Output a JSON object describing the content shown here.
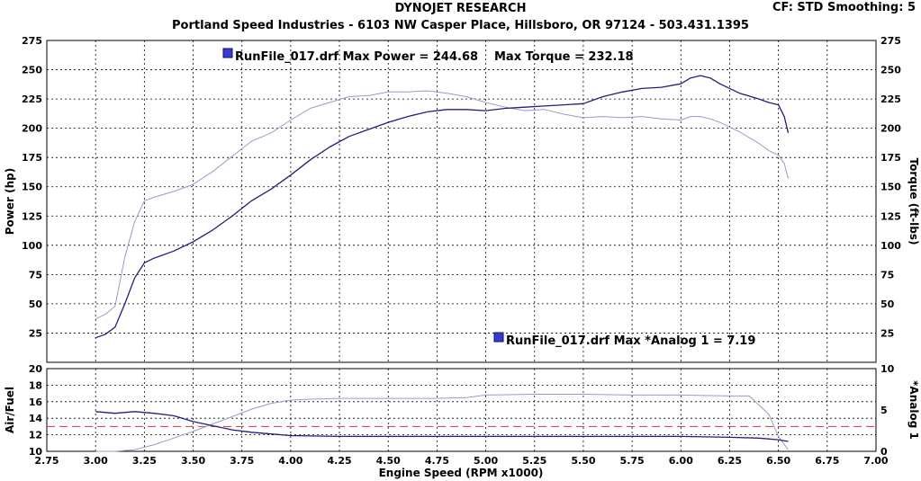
{
  "header": {
    "title": "DYNOJET RESEARCH",
    "subtitle": "Portland Speed Industries - 6103 NW Casper Place, Hillsboro, OR 97124 - 503.431.1395",
    "settings": "CF: STD  Smoothing: 5"
  },
  "colors": {
    "power": "#1f1f7a",
    "torque": "#9a9ac8",
    "afr": "#1f1f7a",
    "analog": "#9a9ac8",
    "reference_line": "#c04040",
    "grid": "#000000"
  },
  "chart_data": [
    {
      "type": "line",
      "panel": "upper",
      "ylabel": "Power (hp)",
      "y2label": "Torque (ft-lbs)",
      "xlim": [
        2.75,
        7.0
      ],
      "ylim": [
        0,
        275
      ],
      "grid": true,
      "x_ticks": [
        "2.75",
        "3.00",
        "3.25",
        "3.50",
        "3.75",
        "4.00",
        "4.25",
        "4.50",
        "4.75",
        "5.00",
        "5.25",
        "5.50",
        "5.75",
        "6.00",
        "6.25",
        "6.50",
        "6.75",
        "7.00"
      ],
      "y_ticks": [
        "0",
        "25",
        "50",
        "75",
        "100",
        "125",
        "150",
        "175",
        "200",
        "225",
        "250",
        "275"
      ],
      "annotations": [
        "RunFile_017.drf Max Power = 244.68",
        "Max Torque = 232.18"
      ],
      "series": [
        {
          "axis": "power",
          "x": [
            3.0,
            3.05,
            3.1,
            3.15,
            3.2,
            3.25,
            3.3,
            3.4,
            3.5,
            3.6,
            3.7,
            3.8,
            3.9,
            4.0,
            4.1,
            4.2,
            4.3,
            4.4,
            4.5,
            4.6,
            4.7,
            4.8,
            4.9,
            5.0,
            5.1,
            5.2,
            5.3,
            5.4,
            5.5,
            5.6,
            5.7,
            5.8,
            5.9,
            6.0,
            6.05,
            6.1,
            6.15,
            6.2,
            6.3,
            6.4,
            6.45,
            6.5,
            6.53,
            6.55
          ],
          "y": [
            21,
            24,
            30,
            50,
            72,
            85,
            89,
            95,
            103,
            113,
            125,
            138,
            148,
            160,
            173,
            184,
            193,
            199,
            205,
            210,
            214,
            216,
            216,
            215,
            217,
            218,
            219,
            220,
            221,
            227,
            231,
            234,
            235,
            238,
            243,
            245,
            243,
            238,
            230,
            225,
            222,
            220,
            210,
            196
          ]
        },
        {
          "axis": "torque",
          "x": [
            3.0,
            3.05,
            3.1,
            3.15,
            3.2,
            3.25,
            3.3,
            3.4,
            3.5,
            3.6,
            3.7,
            3.8,
            3.9,
            4.0,
            4.1,
            4.2,
            4.3,
            4.4,
            4.5,
            4.6,
            4.7,
            4.8,
            4.9,
            5.0,
            5.1,
            5.2,
            5.3,
            5.4,
            5.5,
            5.6,
            5.7,
            5.8,
            5.9,
            6.0,
            6.05,
            6.1,
            6.15,
            6.2,
            6.3,
            6.4,
            6.45,
            6.5,
            6.53,
            6.55
          ],
          "y": [
            37,
            41,
            48,
            90,
            120,
            138,
            141,
            146,
            152,
            163,
            176,
            189,
            196,
            207,
            217,
            222,
            227,
            228,
            231,
            231,
            232,
            230,
            227,
            222,
            218,
            215,
            216,
            212,
            209,
            210,
            209,
            210,
            208,
            207,
            210,
            210,
            208,
            205,
            197,
            187,
            181,
            177,
            170,
            157
          ]
        }
      ]
    },
    {
      "type": "line",
      "panel": "lower",
      "xlabel": "Engine Speed (RPM x1000)",
      "ylabel": "Air/Fuel",
      "y2label": "*Analog 1",
      "xlim": [
        2.75,
        7.0
      ],
      "ylim": [
        10,
        20
      ],
      "y2lim": [
        0,
        10
      ],
      "grid": true,
      "y_ticks": [
        "10",
        "12",
        "14",
        "16",
        "18",
        "20"
      ],
      "y2_ticks": [
        "0",
        "5",
        "10"
      ],
      "reference_line_y": 13,
      "annotations": [
        "RunFile_017.drf Max *Analog 1 = 7.19"
      ],
      "series": [
        {
          "axis": "afr",
          "x": [
            3.0,
            3.1,
            3.2,
            3.3,
            3.4,
            3.5,
            3.6,
            3.7,
            3.8,
            3.9,
            4.0,
            4.25,
            4.5,
            4.75,
            5.0,
            5.25,
            5.5,
            5.75,
            6.0,
            6.25,
            6.4,
            6.5,
            6.55
          ],
          "y": [
            14.8,
            14.6,
            14.8,
            14.6,
            14.3,
            13.6,
            13.1,
            12.6,
            12.3,
            12.1,
            11.9,
            11.8,
            11.8,
            11.8,
            11.8,
            11.8,
            11.8,
            11.8,
            11.8,
            11.7,
            11.6,
            11.4,
            11.2
          ]
        },
        {
          "axis": "analog",
          "x": [
            3.0,
            3.1,
            3.2,
            3.3,
            3.4,
            3.5,
            3.6,
            3.7,
            3.8,
            3.9,
            4.0,
            4.1,
            4.25,
            4.5,
            4.75,
            4.9,
            5.0,
            5.25,
            5.5,
            5.75,
            6.0,
            6.25,
            6.35,
            6.45,
            6.5,
            6.55
          ],
          "y": [
            0.0,
            0.0,
            0.2,
            0.8,
            1.6,
            2.4,
            3.3,
            4.2,
            5.1,
            5.8,
            6.2,
            6.3,
            6.4,
            6.4,
            6.4,
            6.5,
            6.8,
            6.9,
            6.9,
            6.8,
            6.8,
            6.7,
            6.7,
            4.5,
            1.8,
            0.2
          ]
        }
      ]
    }
  ]
}
